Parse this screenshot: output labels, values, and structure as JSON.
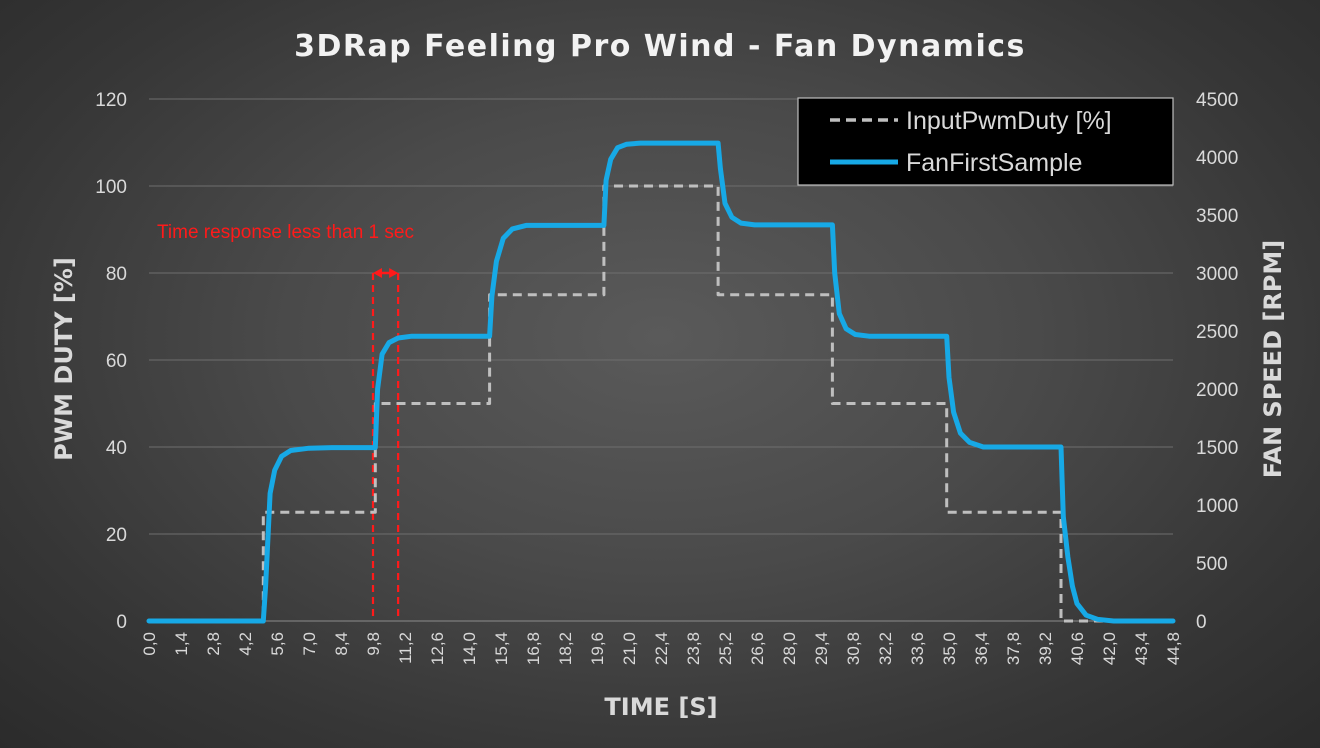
{
  "chart_data": {
    "type": "line",
    "title": "3DRap Feeling Pro Wind - Fan Dynamics",
    "xlabel": "TIME [S]",
    "ylabel": "PWM DUTY [%]",
    "y2label": "FAN SPEED [RPM]",
    "xlim": [
      0,
      44.8
    ],
    "ylim": [
      0,
      120
    ],
    "y2lim": [
      0,
      4500
    ],
    "x_ticks": [
      "0,0",
      "1,4",
      "2,8",
      "4,2",
      "5,6",
      "7,0",
      "8,4",
      "9,8",
      "11,2",
      "12,6",
      "14,0",
      "15,4",
      "16,8",
      "18,2",
      "19,6",
      "21,0",
      "22,4",
      "23,8",
      "25,2",
      "26,6",
      "28,0",
      "29,4",
      "30,8",
      "32,2",
      "33,6",
      "35,0",
      "36,4",
      "37,8",
      "39,2",
      "40,6",
      "42,0",
      "43,4",
      "44,8"
    ],
    "y_ticks": [
      "0",
      "20",
      "40",
      "60",
      "80",
      "100",
      "120"
    ],
    "y2_ticks": [
      "0",
      "500",
      "1000",
      "1500",
      "2000",
      "2500",
      "3000",
      "3500",
      "4000",
      "4500"
    ],
    "grid": true,
    "legend_position": "top-right",
    "series": [
      {
        "name": "InputPwmDuty [%]",
        "axis": "left",
        "color": "#bfbfbf",
        "style": "dashed",
        "points": [
          [
            0,
            0
          ],
          [
            5.0,
            0
          ],
          [
            5.0,
            25
          ],
          [
            9.9,
            25
          ],
          [
            9.9,
            50
          ],
          [
            14.9,
            50
          ],
          [
            14.9,
            75
          ],
          [
            19.9,
            75
          ],
          [
            19.9,
            100
          ],
          [
            24.9,
            100
          ],
          [
            24.9,
            75
          ],
          [
            29.9,
            75
          ],
          [
            29.9,
            50
          ],
          [
            34.9,
            50
          ],
          [
            34.9,
            25
          ],
          [
            39.9,
            25
          ],
          [
            39.9,
            0
          ],
          [
            44.8,
            0
          ]
        ]
      },
      {
        "name": "FanFirstSample",
        "axis": "right",
        "color": "#17a9e6",
        "style": "solid",
        "points": [
          [
            0,
            0
          ],
          [
            5.0,
            0
          ],
          [
            5.1,
            300
          ],
          [
            5.3,
            1100
          ],
          [
            5.5,
            1300
          ],
          [
            5.8,
            1420
          ],
          [
            6.2,
            1470
          ],
          [
            7.0,
            1490
          ],
          [
            8.0,
            1495
          ],
          [
            9.9,
            1495
          ],
          [
            10.0,
            2000
          ],
          [
            10.2,
            2300
          ],
          [
            10.5,
            2400
          ],
          [
            10.9,
            2440
          ],
          [
            11.5,
            2455
          ],
          [
            14.9,
            2455
          ],
          [
            15.0,
            2800
          ],
          [
            15.2,
            3100
          ],
          [
            15.5,
            3300
          ],
          [
            15.9,
            3380
          ],
          [
            16.5,
            3410
          ],
          [
            19.9,
            3410
          ],
          [
            20.0,
            3800
          ],
          [
            20.2,
            3980
          ],
          [
            20.5,
            4080
          ],
          [
            20.9,
            4110
          ],
          [
            21.5,
            4120
          ],
          [
            24.9,
            4120
          ],
          [
            25.0,
            3900
          ],
          [
            25.2,
            3600
          ],
          [
            25.5,
            3480
          ],
          [
            25.9,
            3430
          ],
          [
            26.5,
            3415
          ],
          [
            29.9,
            3415
          ],
          [
            30.0,
            3000
          ],
          [
            30.2,
            2650
          ],
          [
            30.5,
            2520
          ],
          [
            30.9,
            2470
          ],
          [
            31.5,
            2455
          ],
          [
            34.9,
            2455
          ],
          [
            35.0,
            2100
          ],
          [
            35.2,
            1800
          ],
          [
            35.5,
            1620
          ],
          [
            35.9,
            1540
          ],
          [
            36.5,
            1500
          ],
          [
            39.9,
            1500
          ],
          [
            40.0,
            900
          ],
          [
            40.2,
            550
          ],
          [
            40.4,
            300
          ],
          [
            40.6,
            150
          ],
          [
            41.0,
            50
          ],
          [
            41.5,
            15
          ],
          [
            42.2,
            0
          ],
          [
            44.8,
            0
          ]
        ]
      }
    ],
    "annotation": {
      "text": "Time response less than 1 sec",
      "x_start": 9.8,
      "x_end": 10.9,
      "y_arrow": 80,
      "color": "#ff1a1a"
    }
  }
}
